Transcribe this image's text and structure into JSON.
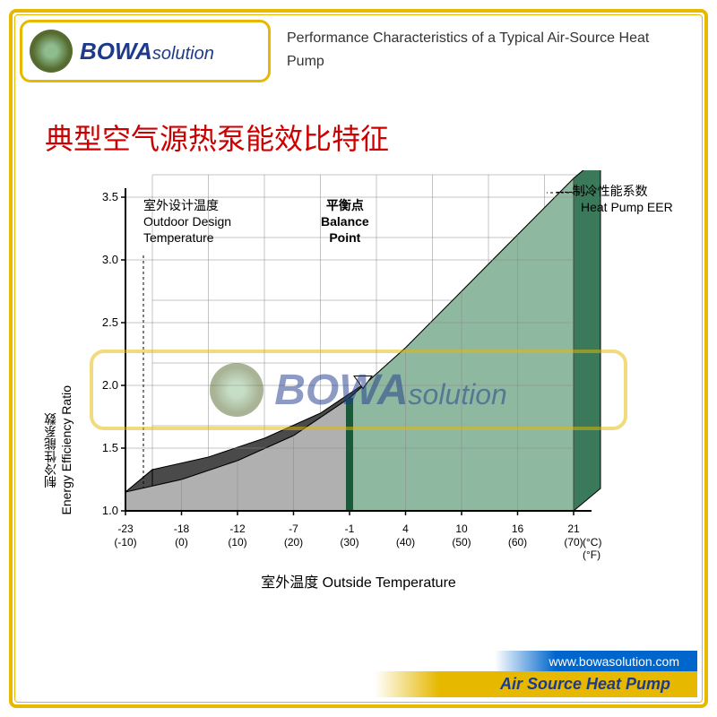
{
  "header": {
    "logo_main": "BOWA",
    "logo_sub": "solution",
    "subtitle": "Performance Characteristics of a Typical Air-Source Heat Pump"
  },
  "title_cn": "典型空气源热泵能效比特征",
  "chart": {
    "type": "3d-area-bar",
    "ylabel_cn": "制冷性能系数",
    "ylabel_en": "Energy Efficiency Ratio",
    "xlabel_cn": "室外温度",
    "xlabel_en": "Outside Temperature",
    "xunit_c": "(°C)",
    "xunit_f": "(°F)",
    "ylim": [
      1.0,
      3.5
    ],
    "ytick_step": 0.5,
    "yticks": [
      "1.0",
      "1.5",
      "2.0",
      "2.5",
      "3.0",
      "3.5"
    ],
    "xticks_c": [
      "-23",
      "-18",
      "-12",
      "-7",
      "-1",
      "4",
      "10",
      "16",
      "21"
    ],
    "xticks_f": [
      "(-10)",
      "(0)",
      "(10)",
      "(20)",
      "(30)",
      "(40)",
      "(50)",
      "(60)",
      "(70)"
    ],
    "balance_point_x": -1,
    "curve_values": [
      1.15,
      1.25,
      1.4,
      1.6,
      1.9,
      2.3,
      2.75,
      3.2,
      3.65
    ],
    "colors": {
      "left_top": "#4a4a4a",
      "left_front": "#b0b0b0",
      "right_top": "#3a7a5a",
      "right_front": "#8fb8a0",
      "divider": "#1a5a3a",
      "grid": "#888888",
      "axis": "#000000",
      "background": "#ffffff"
    },
    "depth_offset_x": 30,
    "depth_offset_y": -25,
    "annotations": {
      "outdoor_design_cn": "室外设计温度",
      "outdoor_design_en": "Outdoor Design\nTemperature",
      "balance_cn": "平衡点",
      "balance_en": "Balance\nPoint",
      "eer_cn": "制冷性能系数",
      "eer_en": "Heat Pump EER"
    }
  },
  "watermark": {
    "main": "BOWA",
    "sub": "solution"
  },
  "footer": {
    "url": "www.bowasolution.com",
    "product": "Air Source Heat Pump"
  }
}
